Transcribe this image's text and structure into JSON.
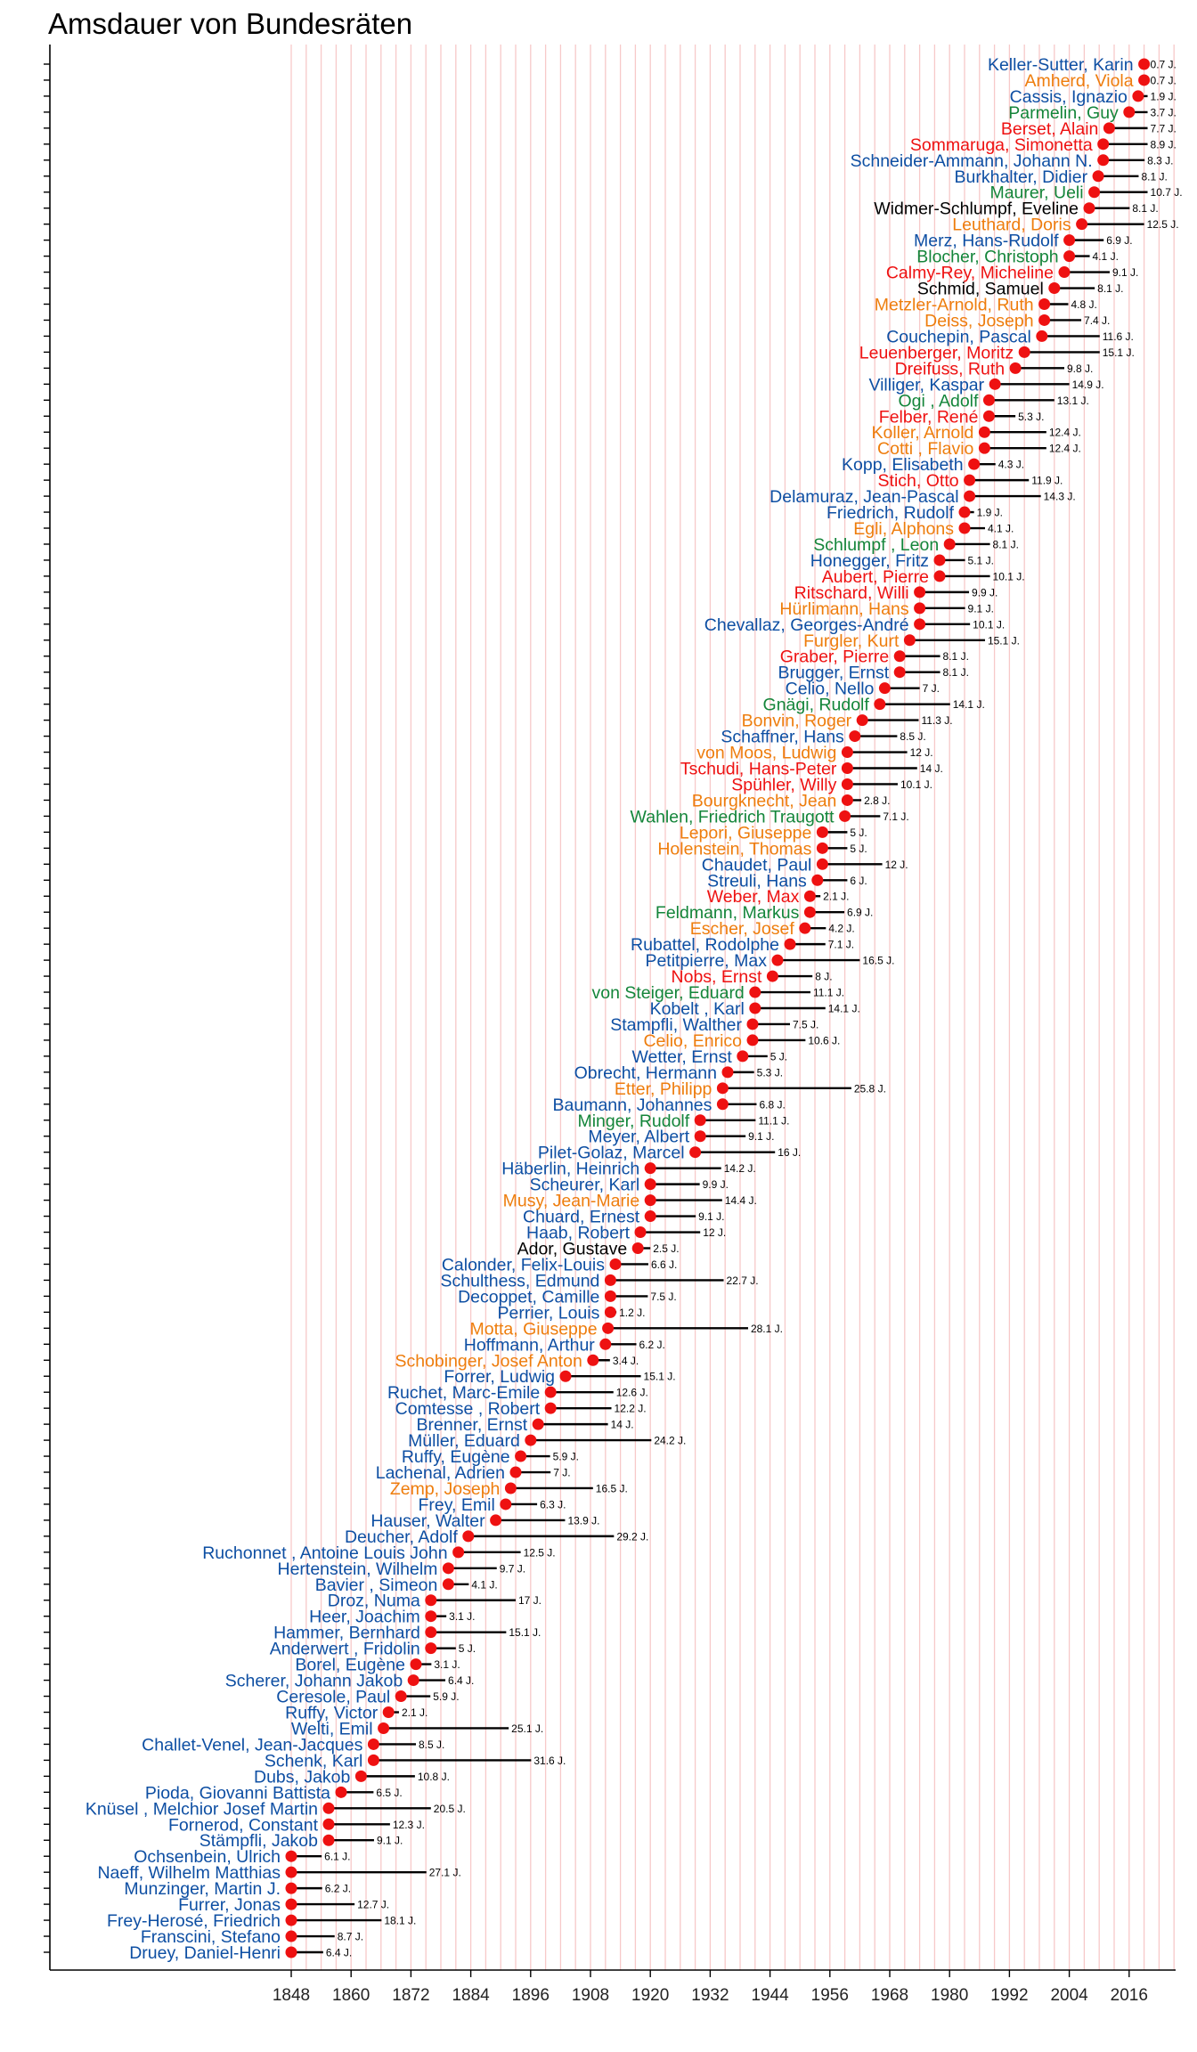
{
  "title": "Amsdauer von Bundesräten",
  "colors": {
    "blue": "#0e4fa3",
    "orange": "#ee7d0d",
    "red": "#ee1111",
    "green": "#14853a",
    "black": "#000000",
    "point": "#ee1111",
    "gridline": "#f7c9c9"
  },
  "chart_data": {
    "type": "scatter",
    "title": "Amsdauer von Bundesräten",
    "xlabel": "",
    "ylabel": "",
    "x_ticks": [
      1848,
      1860,
      1872,
      1884,
      1896,
      1908,
      1920,
      1932,
      1944,
      1956,
      1968,
      1980,
      1992,
      2004,
      2016
    ],
    "xlim": [
      1848,
      2026
    ],
    "grid_x_step": 3,
    "duration_suffix": " J.",
    "points": [
      {
        "name": "Keller-Sutter, Karin",
        "color": "blue",
        "start": 2019.0,
        "duration": "0.7"
      },
      {
        "name": "Amherd, Viola",
        "color": "orange",
        "start": 2019.0,
        "duration": "0.7"
      },
      {
        "name": "Cassis, Ignazio",
        "color": "blue",
        "start": 2017.8,
        "duration": "1.9"
      },
      {
        "name": "Parmelin, Guy",
        "color": "green",
        "start": 2016.0,
        "duration": "3.7"
      },
      {
        "name": "Berset, Alain",
        "color": "red",
        "start": 2012.0,
        "duration": "7.7"
      },
      {
        "name": "Sommaruga, Simonetta",
        "color": "red",
        "start": 2010.8,
        "duration": "8.9"
      },
      {
        "name": "Schneider-Ammann, Johann N.",
        "color": "blue",
        "start": 2010.8,
        "duration": "8.3"
      },
      {
        "name": "Burkhalter, Didier",
        "color": "blue",
        "start": 2009.8,
        "duration": "8.1"
      },
      {
        "name": "Maurer, Ueli",
        "color": "green",
        "start": 2009.0,
        "duration": "10.7"
      },
      {
        "name": "Widmer-Schlumpf, Eveline",
        "color": "black",
        "start": 2008.0,
        "duration": "8.1"
      },
      {
        "name": "Leuthard, Doris",
        "color": "orange",
        "start": 2006.5,
        "duration": "12.5"
      },
      {
        "name": "Merz, Hans-Rudolf",
        "color": "blue",
        "start": 2004.0,
        "duration": "6.9"
      },
      {
        "name": "Blocher, Christoph",
        "color": "green",
        "start": 2004.0,
        "duration": "4.1"
      },
      {
        "name": "Calmy-Rey, Micheline",
        "color": "red",
        "start": 2003.0,
        "duration": "9.1"
      },
      {
        "name": "Schmid, Samuel",
        "color": "black",
        "start": 2001.0,
        "duration": "8.1"
      },
      {
        "name": "Metzler-Arnold, Ruth",
        "color": "orange",
        "start": 1999.0,
        "duration": "4.8"
      },
      {
        "name": "Deiss, Joseph",
        "color": "orange",
        "start": 1999.0,
        "duration": "7.4"
      },
      {
        "name": "Couchepin, Pascal",
        "color": "blue",
        "start": 1998.5,
        "duration": "11.6"
      },
      {
        "name": "Leuenberger, Moritz",
        "color": "red",
        "start": 1995.0,
        "duration": "15.1"
      },
      {
        "name": "Dreifuss, Ruth",
        "color": "red",
        "start": 1993.2,
        "duration": "9.8"
      },
      {
        "name": "Villiger, Kaspar",
        "color": "blue",
        "start": 1989.1,
        "duration": "14.9"
      },
      {
        "name": "Ogi , Adolf",
        "color": "green",
        "start": 1987.9,
        "duration": "13.1"
      },
      {
        "name": "Felber, René",
        "color": "red",
        "start": 1987.9,
        "duration": "5.3"
      },
      {
        "name": "Koller, Arnold",
        "color": "orange",
        "start": 1987.0,
        "duration": "12.4"
      },
      {
        "name": "Cotti , Flavio",
        "color": "orange",
        "start": 1987.0,
        "duration": "12.4"
      },
      {
        "name": "Kopp, Elisabeth",
        "color": "blue",
        "start": 1984.9,
        "duration": "4.3"
      },
      {
        "name": "Stich, Otto",
        "color": "red",
        "start": 1984.0,
        "duration": "11.9"
      },
      {
        "name": "Delamuraz, Jean-Pascal",
        "color": "blue",
        "start": 1984.0,
        "duration": "14.3"
      },
      {
        "name": "Friedrich, Rudolf",
        "color": "blue",
        "start": 1983.0,
        "duration": "1.9"
      },
      {
        "name": "Egli, Alphons",
        "color": "orange",
        "start": 1983.0,
        "duration": "4.1"
      },
      {
        "name": "Schlumpf , Leon",
        "color": "green",
        "start": 1980.0,
        "duration": "8.1"
      },
      {
        "name": "Honegger, Fritz",
        "color": "blue",
        "start": 1978.0,
        "duration": "5.1"
      },
      {
        "name": "Aubert, Pierre",
        "color": "red",
        "start": 1978.0,
        "duration": "10.1"
      },
      {
        "name": "Ritschard, Willi",
        "color": "red",
        "start": 1974.0,
        "duration": "9.9"
      },
      {
        "name": "Hürlimann, Hans",
        "color": "orange",
        "start": 1974.0,
        "duration": "9.1"
      },
      {
        "name": "Chevallaz, Georges-André",
        "color": "blue",
        "start": 1974.0,
        "duration": "10.1"
      },
      {
        "name": "Furgler, Kurt",
        "color": "orange",
        "start": 1972.0,
        "duration": "15.1"
      },
      {
        "name": "Graber, Pierre",
        "color": "red",
        "start": 1970.0,
        "duration": "8.1"
      },
      {
        "name": "Brugger, Ernst",
        "color": "blue",
        "start": 1970.0,
        "duration": "8.1"
      },
      {
        "name": "Celio, Nello",
        "color": "blue",
        "start": 1967.0,
        "duration": "7"
      },
      {
        "name": "Gnägi, Rudolf",
        "color": "green",
        "start": 1966.0,
        "duration": "14.1"
      },
      {
        "name": "Bonvin, Roger",
        "color": "orange",
        "start": 1962.5,
        "duration": "11.3"
      },
      {
        "name": "Schaffner, Hans",
        "color": "blue",
        "start": 1961.0,
        "duration": "8.5"
      },
      {
        "name": "von Moos, Ludwig",
        "color": "orange",
        "start": 1959.5,
        "duration": "12"
      },
      {
        "name": "Tschudi, Hans-Peter",
        "color": "red",
        "start": 1959.5,
        "duration": "14"
      },
      {
        "name": "Spühler, Willy",
        "color": "red",
        "start": 1959.5,
        "duration": "10.1"
      },
      {
        "name": "Bourgknecht, Jean",
        "color": "orange",
        "start": 1959.5,
        "duration": "2.8"
      },
      {
        "name": "Wahlen, Friedrich Traugott",
        "color": "green",
        "start": 1959.0,
        "duration": "7.1"
      },
      {
        "name": "Lepori, Giuseppe",
        "color": "orange",
        "start": 1954.5,
        "duration": "5"
      },
      {
        "name": "Holenstein, Thomas",
        "color": "orange",
        "start": 1954.5,
        "duration": "5"
      },
      {
        "name": "Chaudet, Paul",
        "color": "blue",
        "start": 1954.5,
        "duration": "12"
      },
      {
        "name": "Streuli, Hans",
        "color": "blue",
        "start": 1953.5,
        "duration": "6"
      },
      {
        "name": "Weber, Max",
        "color": "red",
        "start": 1952.0,
        "duration": "2.1"
      },
      {
        "name": "Feldmann, Markus",
        "color": "green",
        "start": 1952.0,
        "duration": "6.9"
      },
      {
        "name": "Escher, Josef",
        "color": "orange",
        "start": 1951.0,
        "duration": "4.2"
      },
      {
        "name": "Rubattel, Rodolphe",
        "color": "blue",
        "start": 1948.0,
        "duration": "7.1"
      },
      {
        "name": "Petitpierre, Max",
        "color": "blue",
        "start": 1945.5,
        "duration": "16.5"
      },
      {
        "name": "Nobs, Ernst",
        "color": "red",
        "start": 1944.5,
        "duration": "8"
      },
      {
        "name": "von Steiger, Eduard",
        "color": "green",
        "start": 1941.0,
        "duration": "11.1"
      },
      {
        "name": "Kobelt , Karl",
        "color": "blue",
        "start": 1941.0,
        "duration": "14.1"
      },
      {
        "name": "Stampfli, Walther",
        "color": "blue",
        "start": 1940.5,
        "duration": "7.5"
      },
      {
        "name": "Celio, Enrico",
        "color": "orange",
        "start": 1940.5,
        "duration": "10.6"
      },
      {
        "name": "Wetter, Ernst",
        "color": "blue",
        "start": 1938.5,
        "duration": "5"
      },
      {
        "name": "Obrecht, Hermann",
        "color": "blue",
        "start": 1935.5,
        "duration": "5.3"
      },
      {
        "name": "Etter, Philipp",
        "color": "orange",
        "start": 1934.5,
        "duration": "25.8"
      },
      {
        "name": "Baumann, Johannes",
        "color": "blue",
        "start": 1934.5,
        "duration": "6.8"
      },
      {
        "name": "Minger, Rudolf",
        "color": "green",
        "start": 1930.0,
        "duration": "11.1"
      },
      {
        "name": "Meyer, Albert",
        "color": "blue",
        "start": 1930.0,
        "duration": "9.1"
      },
      {
        "name": "Pilet-Golaz, Marcel",
        "color": "blue",
        "start": 1929.0,
        "duration": "16"
      },
      {
        "name": "Häberlin, Heinrich",
        "color": "blue",
        "start": 1920.0,
        "duration": "14.2"
      },
      {
        "name": "Scheurer, Karl",
        "color": "blue",
        "start": 1920.0,
        "duration": "9.9"
      },
      {
        "name": "Musy, Jean-Marie",
        "color": "orange",
        "start": 1920.0,
        "duration": "14.4"
      },
      {
        "name": "Chuard, Ernest",
        "color": "blue",
        "start": 1920.0,
        "duration": "9.1"
      },
      {
        "name": "Haab, Robert",
        "color": "blue",
        "start": 1918.0,
        "duration": "12"
      },
      {
        "name": "Ador, Gustave",
        "color": "black",
        "start": 1917.5,
        "duration": "2.5"
      },
      {
        "name": "Calonder, Felix-Louis",
        "color": "blue",
        "start": 1913.0,
        "duration": "6.6"
      },
      {
        "name": "Schulthess, Edmund",
        "color": "blue",
        "start": 1912.0,
        "duration": "22.7"
      },
      {
        "name": "Decoppet, Camille",
        "color": "blue",
        "start": 1912.0,
        "duration": "7.5"
      },
      {
        "name": "Perrier, Louis",
        "color": "blue",
        "start": 1912.0,
        "duration": "1.2"
      },
      {
        "name": "Motta, Giuseppe",
        "color": "orange",
        "start": 1911.5,
        "duration": "28.1"
      },
      {
        "name": "Hoffmann, Arthur",
        "color": "blue",
        "start": 1911.0,
        "duration": "6.2"
      },
      {
        "name": "Schobinger, Josef Anton",
        "color": "orange",
        "start": 1908.5,
        "duration": "3.4"
      },
      {
        "name": "Forrer, Ludwig",
        "color": "blue",
        "start": 1903.0,
        "duration": "15.1"
      },
      {
        "name": "Ruchet, Marc-Emile",
        "color": "blue",
        "start": 1900.0,
        "duration": "12.6"
      },
      {
        "name": "Comtesse , Robert",
        "color": "blue",
        "start": 1900.0,
        "duration": "12.2"
      },
      {
        "name": "Brenner, Ernst",
        "color": "blue",
        "start": 1897.5,
        "duration": "14"
      },
      {
        "name": "Müller, Eduard",
        "color": "blue",
        "start": 1896.0,
        "duration": "24.2"
      },
      {
        "name": "Ruffy, Eugène",
        "color": "blue",
        "start": 1894.0,
        "duration": "5.9"
      },
      {
        "name": "Lachenal, Adrien",
        "color": "blue",
        "start": 1893.0,
        "duration": "7"
      },
      {
        "name": "Zemp, Joseph",
        "color": "orange",
        "start": 1892.0,
        "duration": "16.5"
      },
      {
        "name": "Frey, Emil",
        "color": "blue",
        "start": 1891.0,
        "duration": "6.3"
      },
      {
        "name": "Hauser, Walter",
        "color": "blue",
        "start": 1889.0,
        "duration": "13.9"
      },
      {
        "name": "Deucher, Adolf",
        "color": "blue",
        "start": 1883.5,
        "duration": "29.2"
      },
      {
        "name": "Ruchonnet , Antoine Louis John",
        "color": "blue",
        "start": 1881.5,
        "duration": "12.5"
      },
      {
        "name": "Hertenstein, Wilhelm",
        "color": "blue",
        "start": 1879.5,
        "duration": "9.7"
      },
      {
        "name": "Bavier , Simeon",
        "color": "blue",
        "start": 1879.5,
        "duration": "4.1"
      },
      {
        "name": "Droz, Numa",
        "color": "blue",
        "start": 1876.0,
        "duration": "17"
      },
      {
        "name": "Heer, Joachim",
        "color": "blue",
        "start": 1876.0,
        "duration": "3.1"
      },
      {
        "name": "Hammer, Bernhard",
        "color": "blue",
        "start": 1876.0,
        "duration": "15.1"
      },
      {
        "name": "Anderwert , Fridolin",
        "color": "blue",
        "start": 1876.0,
        "duration": "5"
      },
      {
        "name": "Borel, Eugène",
        "color": "blue",
        "start": 1873.0,
        "duration": "3.1"
      },
      {
        "name": "Scherer, Johann Jakob",
        "color": "blue",
        "start": 1872.5,
        "duration": "6.4"
      },
      {
        "name": "Ceresole, Paul",
        "color": "blue",
        "start": 1870.0,
        "duration": "5.9"
      },
      {
        "name": "Ruffy, Victor",
        "color": "blue",
        "start": 1867.5,
        "duration": "2.1"
      },
      {
        "name": "Welti, Emil",
        "color": "blue",
        "start": 1866.5,
        "duration": "25.1"
      },
      {
        "name": "Challet-Venel, Jean-Jacques",
        "color": "blue",
        "start": 1864.5,
        "duration": "8.5"
      },
      {
        "name": "Schenk, Karl",
        "color": "blue",
        "start": 1864.5,
        "duration": "31.6"
      },
      {
        "name": "Dubs, Jakob",
        "color": "blue",
        "start": 1862.0,
        "duration": "10.8"
      },
      {
        "name": "Pioda, Giovanni Battista",
        "color": "blue",
        "start": 1858.0,
        "duration": "6.5"
      },
      {
        "name": "Knüsel , Melchior Josef Martin",
        "color": "blue",
        "start": 1855.5,
        "duration": "20.5"
      },
      {
        "name": "Fornerod, Constant",
        "color": "blue",
        "start": 1855.5,
        "duration": "12.3"
      },
      {
        "name": "Stämpfli, Jakob",
        "color": "blue",
        "start": 1855.5,
        "duration": "9.1"
      },
      {
        "name": "Ochsenbein, Ulrich",
        "color": "blue",
        "start": 1848.0,
        "duration": "6.1"
      },
      {
        "name": "Naeff, Wilhelm Matthias",
        "color": "blue",
        "start": 1848.0,
        "duration": "27.1"
      },
      {
        "name": "Munzinger, Martin J.",
        "color": "blue",
        "start": 1848.0,
        "duration": "6.2"
      },
      {
        "name": "Furrer, Jonas",
        "color": "blue",
        "start": 1848.0,
        "duration": "12.7"
      },
      {
        "name": "Frey-Herosé, Friedrich",
        "color": "blue",
        "start": 1848.0,
        "duration": "18.1"
      },
      {
        "name": "Franscini, Stefano",
        "color": "blue",
        "start": 1848.0,
        "duration": "8.7"
      },
      {
        "name": "Druey, Daniel-Henri",
        "color": "blue",
        "start": 1848.0,
        "duration": "6.4"
      }
    ]
  }
}
